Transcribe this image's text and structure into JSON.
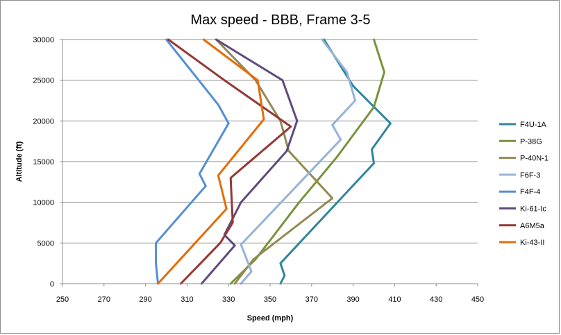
{
  "chart_data": {
    "type": "line",
    "title": "Max speed - BBB, Frame 3-5",
    "xlabel": "Speed (mph)",
    "ylabel": "Altitude (ft)",
    "xlim": [
      250,
      450
    ],
    "ylim": [
      0,
      30000
    ],
    "xticks": [
      "250",
      "270",
      "290",
      "310",
      "330",
      "350",
      "370",
      "390",
      "410",
      "430",
      "450"
    ],
    "yticks": [
      "0",
      "5000",
      "10000",
      "15000",
      "20000",
      "25000",
      "30000"
    ],
    "grid": "horizontal",
    "legend": "right",
    "series": [
      {
        "name": "F4U-1A",
        "color": "#31859C",
        "points": [
          [
            355,
            0
          ],
          [
            357,
            1000
          ],
          [
            355,
            2500
          ],
          [
            400,
            14800
          ],
          [
            399,
            16500
          ],
          [
            408,
            19700
          ],
          [
            399,
            22000
          ],
          [
            390,
            24300
          ],
          [
            376,
            30000
          ]
        ]
      },
      {
        "name": "P-38G",
        "color": "#77933C",
        "points": [
          [
            331,
            0
          ],
          [
            343,
            3000
          ],
          [
            364,
            10000
          ],
          [
            382,
            15500
          ],
          [
            400,
            21700
          ],
          [
            405,
            26000
          ],
          [
            400,
            30000
          ]
        ]
      },
      {
        "name": "P-40N-1",
        "color": "#948A54",
        "points": [
          [
            333,
            0
          ],
          [
            342,
            3000
          ],
          [
            380,
            10500
          ],
          [
            359,
            16300
          ],
          [
            355,
            20000
          ],
          [
            343,
            25000
          ],
          [
            324,
            30000
          ]
        ]
      },
      {
        "name": "F6F-3",
        "color": "#95B3D7",
        "points": [
          [
            336,
            0
          ],
          [
            341,
            1500
          ],
          [
            336,
            4800
          ],
          [
            384,
            17700
          ],
          [
            380,
            19500
          ],
          [
            391,
            22500
          ],
          [
            387,
            26000
          ],
          [
            375,
            30000
          ]
        ]
      },
      {
        "name": "F4F-4",
        "color": "#558ED5",
        "points": [
          [
            296,
            0
          ],
          [
            295,
            2500
          ],
          [
            295,
            5000
          ],
          [
            319,
            12000
          ],
          [
            316,
            13500
          ],
          [
            330,
            19700
          ],
          [
            325,
            22000
          ],
          [
            300,
            30000
          ]
        ]
      },
      {
        "name": "Ki-61-Ic",
        "color": "#604A7B",
        "points": [
          [
            317,
            0
          ],
          [
            333,
            4700
          ],
          [
            328,
            6000
          ],
          [
            336,
            10000
          ],
          [
            358,
            16300
          ],
          [
            363,
            20000
          ],
          [
            356,
            25000
          ],
          [
            324,
            30000
          ]
        ]
      },
      {
        "name": "A6M5a",
        "color": "#953735",
        "points": [
          [
            307,
            0
          ],
          [
            326,
            5000
          ],
          [
            332,
            7500
          ],
          [
            331,
            13000
          ],
          [
            360,
            19300
          ],
          [
            328,
            25000
          ],
          [
            301,
            30000
          ]
        ]
      },
      {
        "name": "Ki-43-II",
        "color": "#E46C0A",
        "points": [
          [
            296,
            0
          ],
          [
            329,
            9200
          ],
          [
            325,
            13300
          ],
          [
            347,
            20200
          ],
          [
            344,
            25000
          ],
          [
            318,
            30000
          ]
        ]
      }
    ]
  }
}
